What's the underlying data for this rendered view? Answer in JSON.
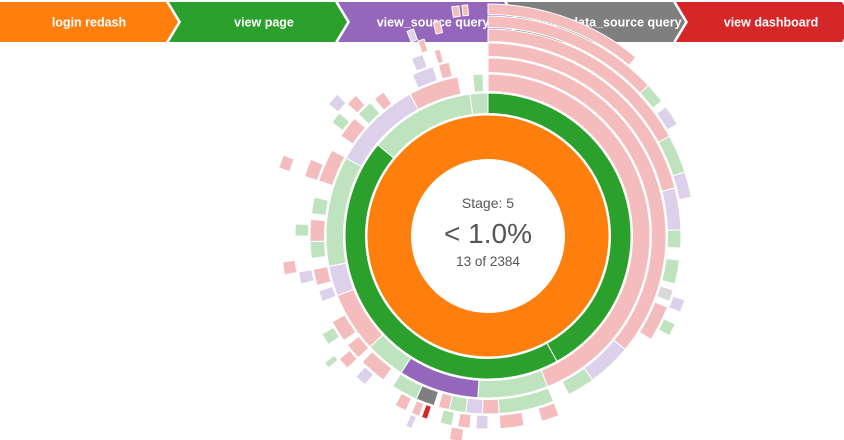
{
  "breadcrumb": {
    "steps": [
      {
        "label": "login redash",
        "color": "#ff7f0e"
      },
      {
        "label": "view page",
        "color": "#2ca02c"
      },
      {
        "label": "view_source query",
        "color": "#9467bd"
      },
      {
        "label": "update_data_source query",
        "color": "#7f7f7f"
      },
      {
        "label": "view dashboard",
        "color": "#d62728"
      }
    ]
  },
  "center": {
    "stage_label": "Stage: 5",
    "percentage": "< 1.0%",
    "count_text": "13 of 2384"
  },
  "chart_data": {
    "type": "sunburst",
    "total": 2384,
    "selected_path": [
      "login redash",
      "view page",
      "view_source query",
      "update_data_source query",
      "view dashboard"
    ],
    "selected_count": 13,
    "selected_stage": 5,
    "event_colors": {
      "login redash": "#ff7f0e",
      "view page": "#2ca02c",
      "view_source query": "#9467bd",
      "update_data_source query": "#7f7f7f",
      "view dashboard": "#d62728",
      "other pink": "#f4bcbc",
      "other green": "#bfe3bf",
      "other purple": "#ddd0ea",
      "other gray": "#d9d9d9"
    },
    "rings": [
      {
        "depth": 1,
        "segments": [
          {
            "from": 0.0,
            "to": 1.0,
            "color": "#ff7f0e",
            "hi": true
          }
        ]
      },
      {
        "depth": 2,
        "segments": [
          {
            "from": 0.0,
            "to": 0.42,
            "color": "#2ca02c",
            "hi": true
          },
          {
            "from": 0.42,
            "to": 0.86,
            "color": "#2ca02c",
            "hi": true
          },
          {
            "from": 0.86,
            "to": 0.98,
            "color": "#bfe3bf"
          },
          {
            "from": 0.98,
            "to": 1.0,
            "color": "#bfe3bf"
          }
        ]
      },
      {
        "depth": 3,
        "segments": [
          {
            "from": 0.0,
            "to": 0.44,
            "color": "#f4bcbc"
          },
          {
            "from": 0.44,
            "to": 0.51,
            "color": "#bfe3bf"
          },
          {
            "from": 0.51,
            "to": 0.59,
            "color": "#9467bd",
            "hi": true
          },
          {
            "from": 0.59,
            "to": 0.63,
            "color": "#bfe3bf"
          },
          {
            "from": 0.63,
            "to": 0.69,
            "color": "#f4bcbc"
          },
          {
            "from": 0.69,
            "to": 0.72,
            "color": "#ddd0ea"
          },
          {
            "from": 0.72,
            "to": 0.83,
            "color": "#bfe3bf"
          },
          {
            "from": 0.83,
            "to": 0.92,
            "color": "#ddd0ea"
          },
          {
            "from": 0.92,
            "to": 0.97,
            "color": "#f4bcbc"
          },
          {
            "from": 0.985,
            "to": 0.995,
            "color": "#bfe3bf"
          }
        ]
      },
      {
        "depth": 4,
        "segments": [
          {
            "from": 0.0,
            "to": 0.36,
            "color": "#f4bcbc"
          },
          {
            "from": 0.36,
            "to": 0.4,
            "color": "#ddd0ea"
          },
          {
            "from": 0.4,
            "to": 0.425,
            "color": "#bfe3bf"
          },
          {
            "from": 0.44,
            "to": 0.49,
            "color": "#bfe3bf"
          },
          {
            "from": 0.49,
            "to": 0.505,
            "color": "#f4bcbc"
          },
          {
            "from": 0.505,
            "to": 0.52,
            "color": "#ddd0ea"
          },
          {
            "from": 0.52,
            "to": 0.535,
            "color": "#bfe3bf"
          },
          {
            "from": 0.535,
            "to": 0.545,
            "color": "#f4bcbc"
          },
          {
            "from": 0.549,
            "to": 0.566,
            "color": "#7f7f7f",
            "hi": true
          },
          {
            "from": 0.566,
            "to": 0.59,
            "color": "#bfe3bf"
          },
          {
            "from": 0.6,
            "to": 0.625,
            "color": "#f4bcbc"
          },
          {
            "from": 0.63,
            "to": 0.645,
            "color": "#f4bcbc"
          },
          {
            "from": 0.65,
            "to": 0.67,
            "color": "#f4bcbc"
          },
          {
            "from": 0.69,
            "to": 0.7,
            "color": "#ddd0ea"
          },
          {
            "from": 0.705,
            "to": 0.72,
            "color": "#f4bcbc"
          },
          {
            "from": 0.73,
            "to": 0.745,
            "color": "#bfe3bf"
          },
          {
            "from": 0.745,
            "to": 0.765,
            "color": "#f4bcbc"
          },
          {
            "from": 0.77,
            "to": 0.785,
            "color": "#bfe3bf"
          },
          {
            "from": 0.8,
            "to": 0.83,
            "color": "#f4bcbc"
          },
          {
            "from": 0.845,
            "to": 0.865,
            "color": "#f4bcbc"
          },
          {
            "from": 0.87,
            "to": 0.885,
            "color": "#bfe3bf"
          },
          {
            "from": 0.89,
            "to": 0.9,
            "color": "#f4bcbc"
          },
          {
            "from": 0.93,
            "to": 0.95,
            "color": "#ddd0ea"
          },
          {
            "from": 0.955,
            "to": 0.965,
            "color": "#f4bcbc"
          }
        ]
      },
      {
        "depth": 5,
        "segments": [
          {
            "from": 0.0,
            "to": 0.21,
            "color": "#f4bcbc"
          },
          {
            "from": 0.21,
            "to": 0.245,
            "color": "#ddd0ea"
          },
          {
            "from": 0.245,
            "to": 0.26,
            "color": "#bfe3bf"
          },
          {
            "from": 0.27,
            "to": 0.29,
            "color": "#bfe3bf"
          },
          {
            "from": 0.295,
            "to": 0.305,
            "color": "#d9d9d9"
          },
          {
            "from": 0.31,
            "to": 0.34,
            "color": "#f4bcbc"
          },
          {
            "from": 0.44,
            "to": 0.455,
            "color": "#f4bcbc"
          },
          {
            "from": 0.47,
            "to": 0.49,
            "color": "#f4bcbc"
          },
          {
            "from": 0.5,
            "to": 0.51,
            "color": "#ddd0ea"
          },
          {
            "from": 0.515,
            "to": 0.525,
            "color": "#f4bcbc"
          },
          {
            "from": 0.53,
            "to": 0.54,
            "color": "#bfe3bf"
          },
          {
            "from": 0.551,
            "to": 0.556,
            "color": "#d62728",
            "hi": true
          },
          {
            "from": 0.558,
            "to": 0.565,
            "color": "#f4bcbc"
          },
          {
            "from": 0.57,
            "to": 0.58,
            "color": "#f4bcbc"
          },
          {
            "from": 0.61,
            "to": 0.62,
            "color": "#ddd0ea"
          },
          {
            "from": 0.63,
            "to": 0.64,
            "color": "#f4bcbc"
          },
          {
            "from": 0.655,
            "to": 0.665,
            "color": "#bfe3bf"
          },
          {
            "from": 0.71,
            "to": 0.72,
            "color": "#ddd0ea"
          },
          {
            "from": 0.75,
            "to": 0.76,
            "color": "#bfe3bf"
          },
          {
            "from": 0.8,
            "to": 0.815,
            "color": "#f4bcbc"
          },
          {
            "from": 0.85,
            "to": 0.86,
            "color": "#bfe3bf"
          },
          {
            "from": 0.87,
            "to": 0.88,
            "color": "#f4bcbc"
          },
          {
            "from": 0.935,
            "to": 0.945,
            "color": "#ddd0ea"
          },
          {
            "from": 0.955,
            "to": 0.96,
            "color": "#f4bcbc"
          }
        ]
      },
      {
        "depth": 6,
        "segments": [
          {
            "from": 0.0,
            "to": 0.17,
            "color": "#f4bcbc"
          },
          {
            "from": 0.17,
            "to": 0.2,
            "color": "#bfe3bf"
          },
          {
            "from": 0.2,
            "to": 0.22,
            "color": "#ddd0ea"
          },
          {
            "from": 0.3,
            "to": 0.31,
            "color": "#ddd0ea"
          },
          {
            "from": 0.32,
            "to": 0.33,
            "color": "#bfe3bf"
          },
          {
            "from": 0.52,
            "to": 0.53,
            "color": "#f4bcbc"
          },
          {
            "from": 0.56,
            "to": 0.565,
            "color": "#ddd0ea"
          },
          {
            "from": 0.64,
            "to": 0.645,
            "color": "#bfe3bf"
          },
          {
            "from": 0.72,
            "to": 0.73,
            "color": "#f4bcbc"
          },
          {
            "from": 0.86,
            "to": 0.87,
            "color": "#ddd0ea"
          },
          {
            "from": 0.945,
            "to": 0.95,
            "color": "#f4bcbc"
          }
        ]
      },
      {
        "depth": 7,
        "segments": [
          {
            "from": 0.0,
            "to": 0.13,
            "color": "#f4bcbc"
          },
          {
            "from": 0.13,
            "to": 0.145,
            "color": "#bfe3bf"
          },
          {
            "from": 0.15,
            "to": 0.165,
            "color": "#ddd0ea"
          },
          {
            "from": 0.8,
            "to": 0.81,
            "color": "#f4bcbc"
          },
          {
            "from": 0.94,
            "to": 0.945,
            "color": "#ddd0ea"
          },
          {
            "from": 0.96,
            "to": 0.965,
            "color": "#f4bcbc"
          }
        ]
      },
      {
        "depth": 8,
        "segments": [
          {
            "from": 0.0,
            "to": 0.11,
            "color": "#f4bcbc"
          },
          {
            "from": 0.975,
            "to": 0.98,
            "color": "#f4bcbc"
          },
          {
            "from": 0.982,
            "to": 0.986,
            "color": "#f4bcbc"
          }
        ]
      }
    ]
  }
}
